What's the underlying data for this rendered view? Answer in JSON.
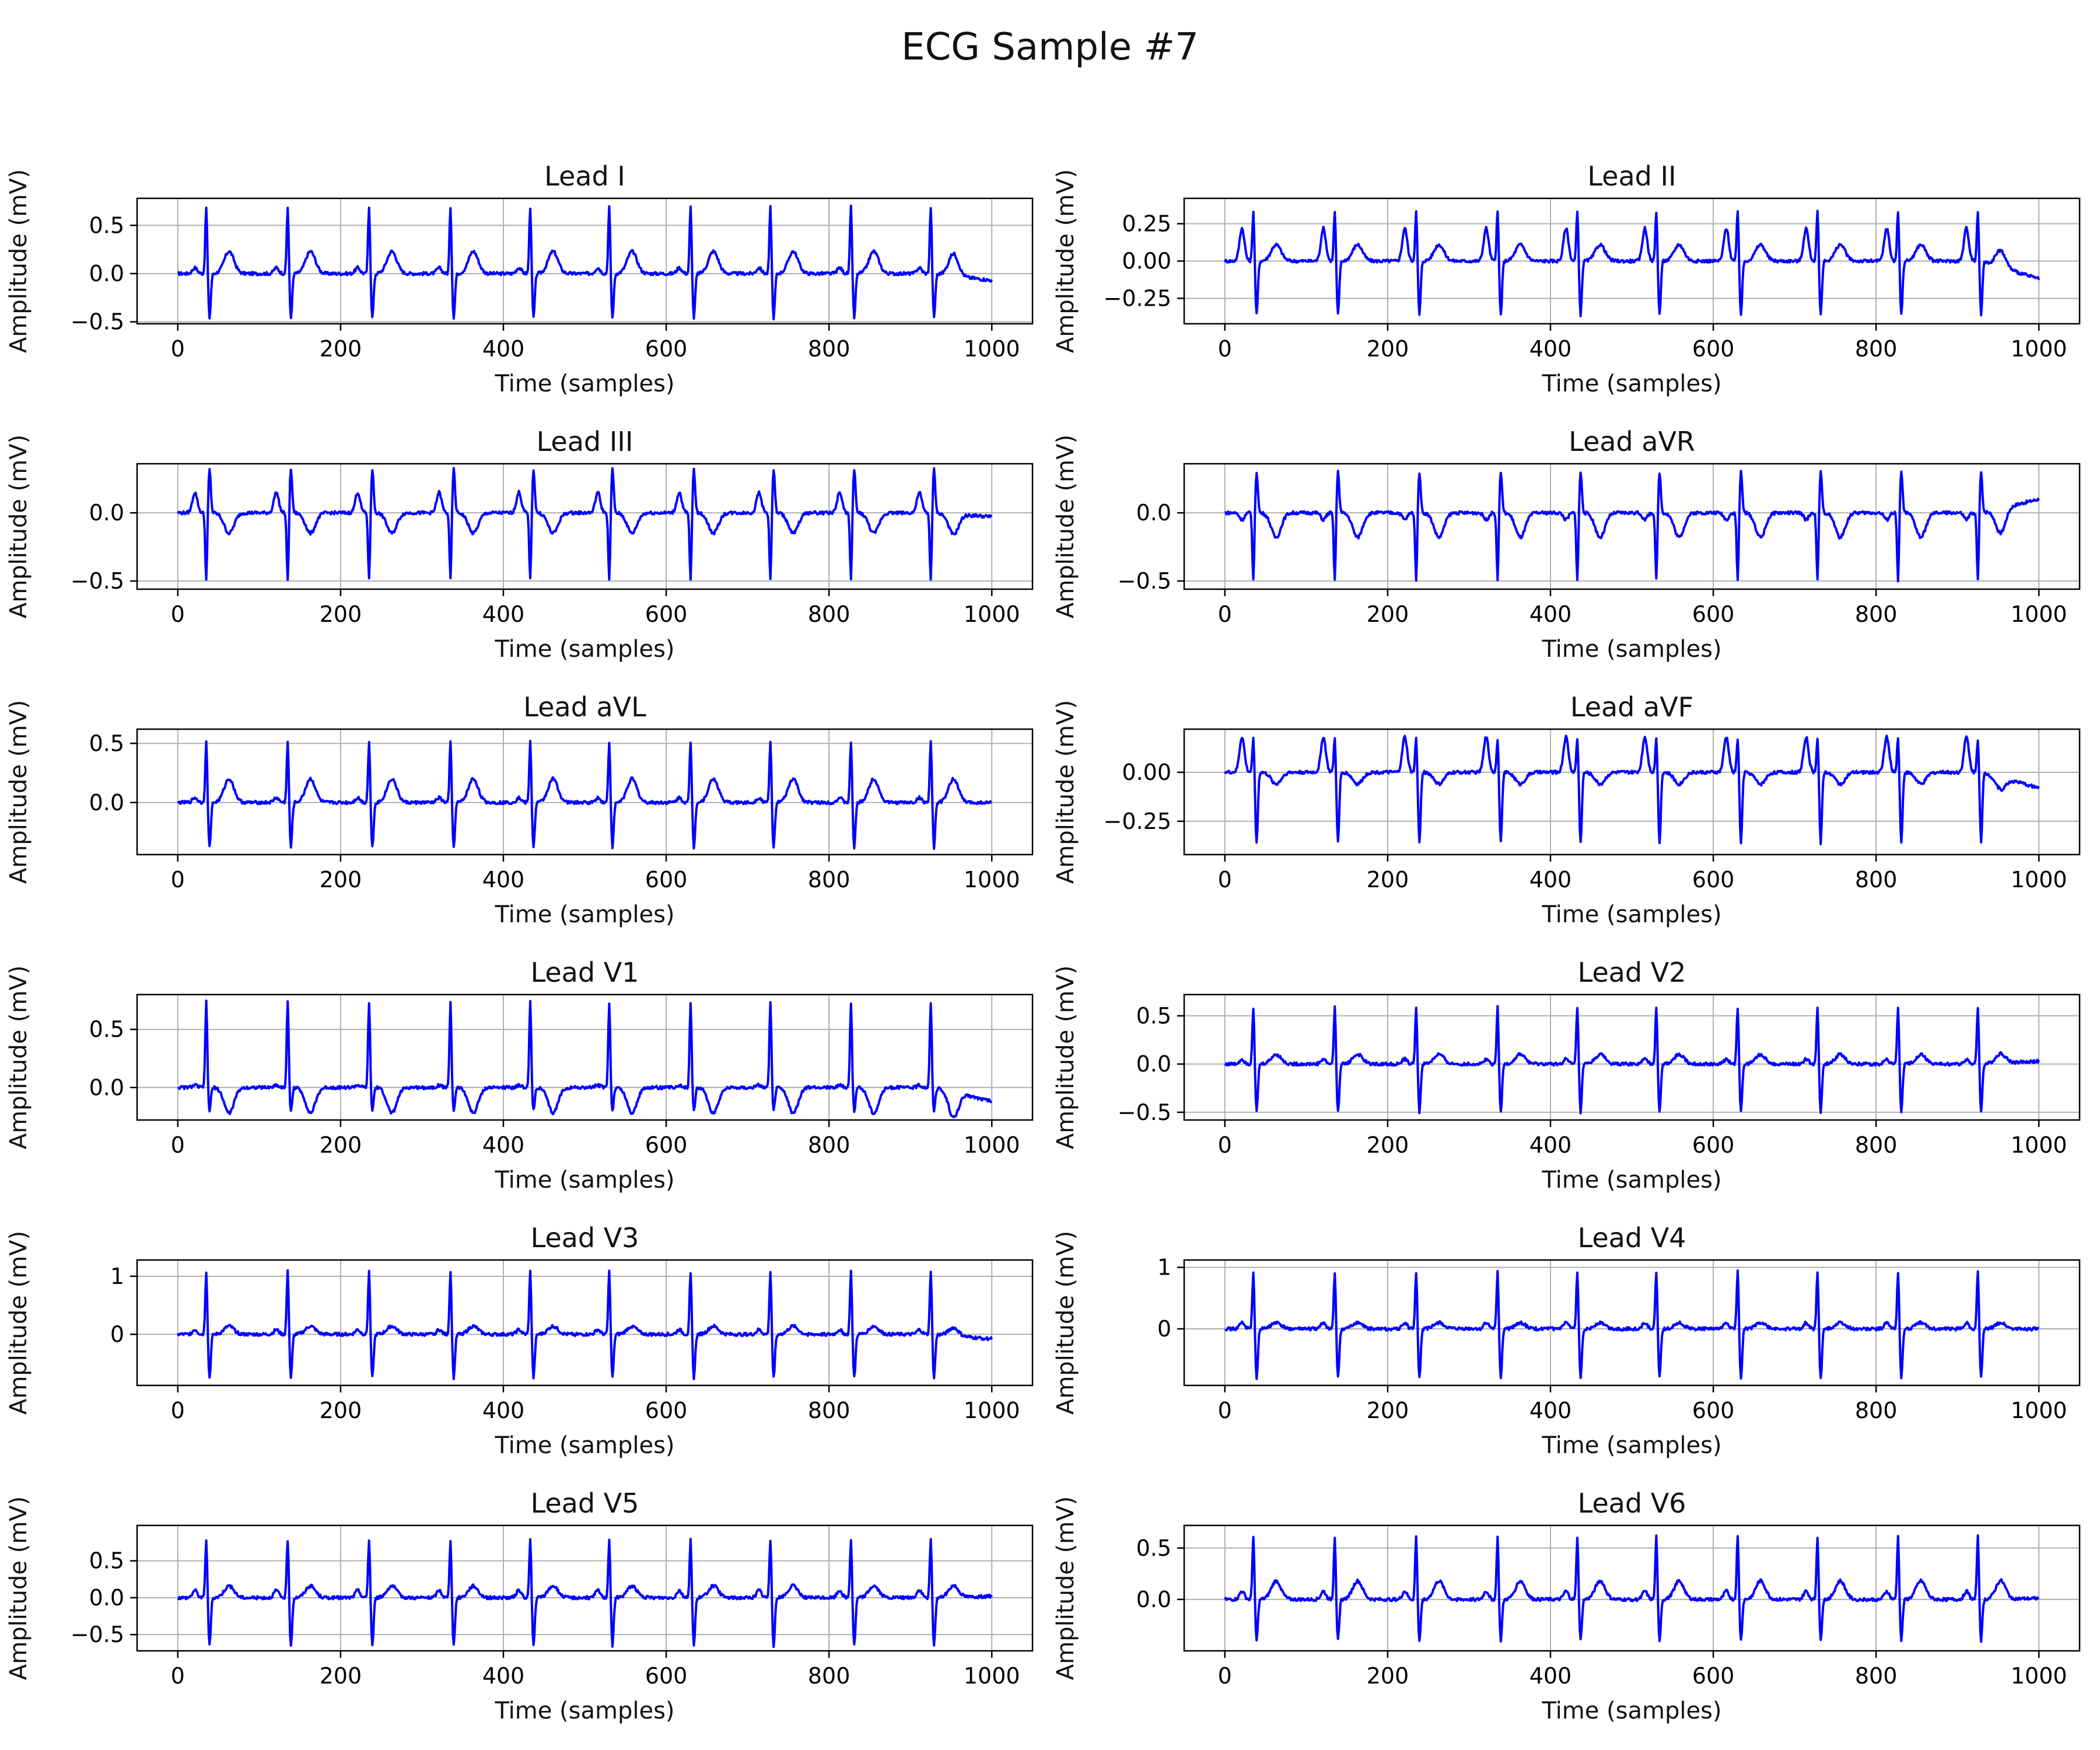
{
  "title": "ECG Sample #7",
  "colors": {
    "trace": "#0000ff",
    "grid": "#b0b0b0",
    "axis": "#000000"
  },
  "chart_data": [
    {
      "type": "line",
      "lead": "I",
      "title": "Lead I",
      "xlabel": "Time (samples)",
      "ylabel": "Amplitude (mV)",
      "xlim": [
        -50,
        1050
      ],
      "ylim": [
        -0.52,
        0.78
      ],
      "xticks": [
        0,
        200,
        400,
        600,
        800,
        1000
      ],
      "yticks": [
        -0.5,
        0.0,
        0.5
      ],
      "ytick_labels": [
        "−0.5",
        "0.0",
        "0.5"
      ],
      "r_amp": 0.7,
      "s_amp": -0.46,
      "t_amp": 0.23,
      "p_amp": 0.06,
      "baseline_end": -0.07,
      "grid": true
    },
    {
      "type": "line",
      "lead": "II",
      "title": "Lead II",
      "xlabel": "Time (samples)",
      "ylabel": "Amplitude (mV)",
      "xlim": [
        -50,
        1050
      ],
      "ylim": [
        -0.42,
        0.42
      ],
      "xticks": [
        0,
        200,
        400,
        600,
        800,
        1000
      ],
      "yticks": [
        -0.25,
        0.0,
        0.25
      ],
      "ytick_labels": [
        "−0.25",
        "0.00",
        "0.25"
      ],
      "r_amp": 0.34,
      "s_amp": -0.36,
      "t_amp": 0.11,
      "p_amp": 0.22,
      "baseline_end": -0.12,
      "grid": true
    },
    {
      "type": "line",
      "lead": "III",
      "title": "Lead III",
      "xlabel": "Time (samples)",
      "ylabel": "Amplitude (mV)",
      "xlim": [
        -50,
        1050
      ],
      "ylim": [
        -0.56,
        0.36
      ],
      "xticks": [
        0,
        200,
        400,
        600,
        800,
        1000
      ],
      "yticks": [
        -0.5,
        0.0
      ],
      "ytick_labels": [
        "−0.5",
        "0.0"
      ],
      "r_amp": -0.5,
      "s_amp": 0.32,
      "t_amp": -0.15,
      "p_amp": 0.15,
      "baseline_end": -0.03,
      "grid": true
    },
    {
      "type": "line",
      "lead": "aVR",
      "title": "Lead aVR",
      "xlabel": "Time (samples)",
      "ylabel": "Amplitude (mV)",
      "xlim": [
        -50,
        1050
      ],
      "ylim": [
        -0.56,
        0.36
      ],
      "xticks": [
        0,
        200,
        400,
        600,
        800,
        1000
      ],
      "yticks": [
        -0.5,
        0.0
      ],
      "ytick_labels": [
        "−0.5",
        "0.0"
      ],
      "r_amp": -0.5,
      "s_amp": 0.3,
      "t_amp": -0.18,
      "p_amp": -0.05,
      "baseline_end": 0.1,
      "grid": true
    },
    {
      "type": "line",
      "lead": "aVL",
      "title": "Lead aVL",
      "xlabel": "Time (samples)",
      "ylabel": "Amplitude (mV)",
      "xlim": [
        -50,
        1050
      ],
      "ylim": [
        -0.44,
        0.62
      ],
      "xticks": [
        0,
        200,
        400,
        600,
        800,
        1000
      ],
      "yticks": [
        0.0,
        0.5
      ],
      "ytick_labels": [
        "0.0",
        "0.5"
      ],
      "r_amp": 0.52,
      "s_amp": -0.38,
      "t_amp": 0.2,
      "p_amp": 0.04,
      "baseline_end": 0.0,
      "grid": true
    },
    {
      "type": "line",
      "lead": "aVF",
      "title": "Lead aVF",
      "xlabel": "Time (samples)",
      "ylabel": "Amplitude (mV)",
      "xlim": [
        -50,
        1050
      ],
      "ylim": [
        -0.42,
        0.22
      ],
      "xticks": [
        0,
        200,
        400,
        600,
        800,
        1000
      ],
      "yticks": [
        -0.25,
        0.0
      ],
      "ytick_labels": [
        "−0.25",
        "0.00"
      ],
      "r_amp": 0.18,
      "s_amp": -0.36,
      "t_amp": -0.06,
      "p_amp": 0.18,
      "baseline_end": -0.08,
      "grid": true
    },
    {
      "type": "line",
      "lead": "V1",
      "title": "Lead V1",
      "xlabel": "Time (samples)",
      "ylabel": "Amplitude (mV)",
      "xlim": [
        -50,
        1050
      ],
      "ylim": [
        -0.28,
        0.8
      ],
      "xticks": [
        0,
        200,
        400,
        600,
        800,
        1000
      ],
      "yticks": [
        0.0,
        0.5
      ],
      "ytick_labels": [
        "0.0",
        "0.5"
      ],
      "r_amp": 0.74,
      "s_amp": -0.2,
      "t_amp": -0.22,
      "p_amp": 0.02,
      "baseline_end": -0.12,
      "grid": true
    },
    {
      "type": "line",
      "lead": "V2",
      "title": "Lead V2",
      "xlabel": "Time (samples)",
      "ylabel": "Amplitude (mV)",
      "xlim": [
        -50,
        1050
      ],
      "ylim": [
        -0.58,
        0.72
      ],
      "xticks": [
        0,
        200,
        400,
        600,
        800,
        1000
      ],
      "yticks": [
        -0.5,
        0.0,
        0.5
      ],
      "ytick_labels": [
        "−0.5",
        "0.0",
        "0.5"
      ],
      "r_amp": 0.6,
      "s_amp": -0.5,
      "t_amp": 0.1,
      "p_amp": 0.05,
      "baseline_end": 0.03,
      "grid": true
    },
    {
      "type": "line",
      "lead": "V3",
      "title": "Lead V3",
      "xlabel": "Time (samples)",
      "ylabel": "Amplitude (mV)",
      "xlim": [
        -50,
        1050
      ],
      "ylim": [
        -0.88,
        1.28
      ],
      "xticks": [
        0,
        200,
        400,
        600,
        800,
        1000
      ],
      "yticks": [
        0,
        1
      ],
      "ytick_labels": [
        "0",
        "1"
      ],
      "r_amp": 1.1,
      "s_amp": -0.75,
      "t_amp": 0.14,
      "p_amp": 0.08,
      "baseline_end": -0.08,
      "grid": true
    },
    {
      "type": "line",
      "lead": "V4",
      "title": "Lead V4",
      "xlabel": "Time (samples)",
      "ylabel": "Amplitude (mV)",
      "xlim": [
        -50,
        1050
      ],
      "ylim": [
        -0.92,
        1.12
      ],
      "xticks": [
        0,
        200,
        400,
        600,
        800,
        1000
      ],
      "yticks": [
        0,
        1
      ],
      "ytick_labels": [
        "0",
        "1"
      ],
      "r_amp": 0.95,
      "s_amp": -0.8,
      "t_amp": 0.1,
      "p_amp": 0.1,
      "baseline_end": 0.0,
      "grid": true
    },
    {
      "type": "line",
      "lead": "V5",
      "title": "Lead V5",
      "xlabel": "Time (samples)",
      "ylabel": "Amplitude (mV)",
      "xlim": [
        -50,
        1050
      ],
      "ylim": [
        -0.72,
        0.98
      ],
      "xticks": [
        0,
        200,
        400,
        600,
        800,
        1000
      ],
      "yticks": [
        -0.5,
        0.0,
        0.5
      ],
      "ytick_labels": [
        "−0.5",
        "0.0",
        "0.5"
      ],
      "r_amp": 0.8,
      "s_amp": -0.65,
      "t_amp": 0.16,
      "p_amp": 0.1,
      "baseline_end": 0.02,
      "grid": true
    },
    {
      "type": "line",
      "lead": "V6",
      "title": "Lead V6",
      "xlabel": "Time (samples)",
      "ylabel": "Amplitude (mV)",
      "xlim": [
        -50,
        1050
      ],
      "ylim": [
        -0.5,
        0.72
      ],
      "xticks": [
        0,
        200,
        400,
        600,
        800,
        1000
      ],
      "yticks": [
        0.0,
        0.5
      ],
      "ytick_labels": [
        "0.0",
        "0.5"
      ],
      "r_amp": 0.62,
      "s_amp": -0.4,
      "t_amp": 0.18,
      "p_amp": 0.08,
      "baseline_end": 0.01,
      "grid": true
    }
  ]
}
